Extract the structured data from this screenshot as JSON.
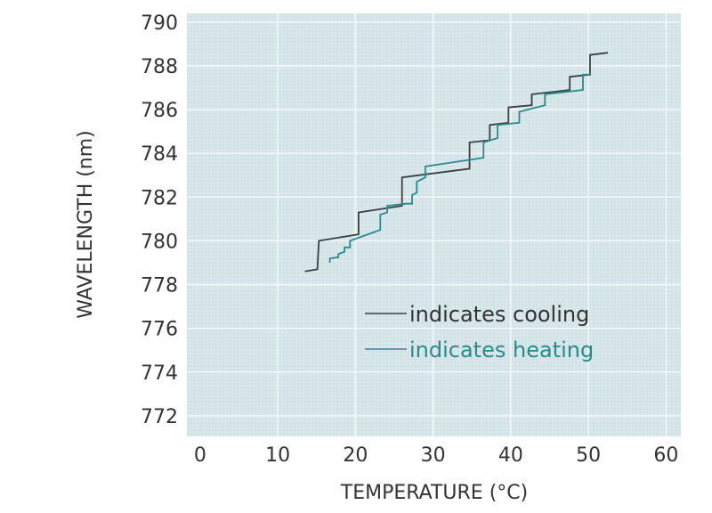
{
  "chart_data": {
    "type": "line",
    "title": "",
    "xlabel": "TEMPERATURE (°C)",
    "ylabel": "WAVELENGTH (nm)",
    "xlim": [
      -1.7,
      61.9
    ],
    "ylim": [
      771.06,
      790.4
    ],
    "xticks": [
      0,
      10,
      20,
      30,
      40,
      50,
      60
    ],
    "yticks": [
      772,
      774,
      776,
      778,
      780,
      782,
      784,
      786,
      788,
      790
    ],
    "grid": true,
    "legend_position": "lower-right",
    "background_color": "#d5e5ea",
    "series": [
      {
        "name": "indicates cooling",
        "color": "#3a4040",
        "points": [
          [
            13.5,
            778.6
          ],
          [
            15.1,
            778.7
          ],
          [
            15.3,
            780.0
          ],
          [
            20.4,
            780.3
          ],
          [
            20.4,
            781.3
          ],
          [
            26.0,
            781.6
          ],
          [
            26.0,
            782.9
          ],
          [
            34.7,
            783.3
          ],
          [
            34.7,
            784.5
          ],
          [
            37.3,
            784.6
          ],
          [
            37.3,
            785.3
          ],
          [
            39.7,
            785.4
          ],
          [
            39.7,
            786.1
          ],
          [
            42.7,
            786.2
          ],
          [
            42.7,
            786.7
          ],
          [
            47.6,
            786.9
          ],
          [
            47.6,
            787.5
          ],
          [
            50.2,
            787.6
          ],
          [
            50.2,
            788.5
          ],
          [
            52.5,
            788.6
          ]
        ]
      },
      {
        "name": "indicates heating",
        "color": "#2a8a8c",
        "points": [
          [
            16.7,
            779.0
          ],
          [
            16.7,
            779.2
          ],
          [
            17.8,
            779.25
          ],
          [
            17.8,
            779.4
          ],
          [
            18.6,
            779.5
          ],
          [
            18.6,
            779.7
          ],
          [
            19.3,
            779.7
          ],
          [
            19.3,
            780.0
          ],
          [
            23.2,
            780.5
          ],
          [
            23.2,
            781.2
          ],
          [
            24.1,
            781.3
          ],
          [
            24.1,
            781.6
          ],
          [
            26.6,
            781.7
          ],
          [
            27.3,
            781.7
          ],
          [
            27.3,
            782.1
          ],
          [
            27.9,
            782.2
          ],
          [
            27.9,
            782.7
          ],
          [
            29.0,
            782.9
          ],
          [
            29.0,
            783.4
          ],
          [
            36.5,
            783.8
          ],
          [
            36.5,
            784.5
          ],
          [
            38.3,
            784.7
          ],
          [
            38.3,
            785.3
          ],
          [
            41.1,
            785.4
          ],
          [
            41.1,
            785.9
          ],
          [
            44.4,
            786.2
          ],
          [
            44.4,
            786.7
          ],
          [
            49.3,
            786.9
          ],
          [
            49.3,
            787.6
          ],
          [
            50.2,
            787.6
          ]
        ]
      }
    ]
  }
}
